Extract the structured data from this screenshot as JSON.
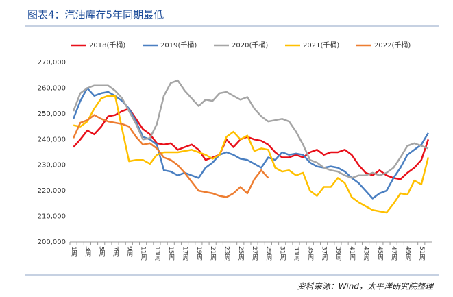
{
  "chart_data": {
    "type": "line",
    "title": "图表4：汽油库存5年同期最低",
    "source": "资料来源：Wind，太平洋研究院整理",
    "categories": [
      "1周",
      null,
      "3周",
      null,
      "5周",
      null,
      "7周",
      null,
      "9周",
      null,
      "11周",
      null,
      "13周",
      null,
      "15周",
      null,
      "17周",
      null,
      "19周",
      null,
      "21周",
      null,
      "23周",
      null,
      "25周",
      null,
      "27周",
      null,
      "29周",
      null,
      "31周",
      null,
      "33周",
      null,
      "35周",
      null,
      "37周",
      null,
      "39周",
      null,
      "41周",
      null,
      "43周",
      null,
      "45周",
      null,
      "47周",
      null,
      "49周",
      null,
      "51周",
      null
    ],
    "ylim": [
      200000,
      270000
    ],
    "yticks": [
      {
        "value": 200000,
        "label": "200,000"
      },
      {
        "value": 210000,
        "label": "210,000"
      },
      {
        "value": 220000,
        "label": "220,000"
      },
      {
        "value": 230000,
        "label": "230,000"
      },
      {
        "value": 240000,
        "label": "240,000"
      },
      {
        "value": 250000,
        "label": "250,000"
      },
      {
        "value": 260000,
        "label": "260,000"
      },
      {
        "value": 270000,
        "label": "270,000"
      }
    ],
    "grid": false,
    "legend": "top",
    "series": [
      {
        "name": "2018(千桶)",
        "color": "#e8101a",
        "values": [
          237000,
          240000,
          243500,
          242000,
          245000,
          249000,
          249500,
          251000,
          252000,
          248000,
          244000,
          242000,
          238500,
          238000,
          238500,
          236000,
          237000,
          238000,
          236000,
          232000,
          233000,
          234000,
          240000,
          237000,
          240000,
          241000,
          240000,
          239500,
          238000,
          235000,
          233000,
          233000,
          234000,
          233000,
          235000,
          236000,
          234000,
          235000,
          235000,
          236000,
          234000,
          230000,
          227000,
          226000,
          228000,
          226000,
          225000,
          224500,
          227000,
          229000,
          232000,
          240000
        ]
      },
      {
        "name": "2019(千桶)",
        "color": "#4a7fc1",
        "values": [
          248000,
          255000,
          260000,
          257000,
          258000,
          258500,
          257000,
          255000,
          252000,
          247000,
          241000,
          240000,
          238000,
          228000,
          227500,
          226000,
          227000,
          226000,
          225000,
          229000,
          231000,
          234000,
          235000,
          234000,
          232500,
          232000,
          230500,
          229000,
          233000,
          232000,
          235000,
          234000,
          234500,
          234000,
          231000,
          229500,
          229000,
          229500,
          229000,
          227500,
          225000,
          223000,
          220000,
          217000,
          219000,
          220000,
          225000,
          229000,
          234000,
          236000,
          238000,
          242500
        ]
      },
      {
        "name": "2020(千桶)",
        "color": "#a5a5a5",
        "values": [
          251000,
          258000,
          260000,
          261000,
          261000,
          261000,
          259000,
          256000,
          251000,
          246000,
          240000,
          240500,
          246000,
          257000,
          262000,
          263000,
          259000,
          256000,
          253000,
          255500,
          255000,
          258000,
          258500,
          257000,
          255500,
          256500,
          252000,
          249000,
          247000,
          247500,
          248000,
          247000,
          243000,
          238000,
          232000,
          231000,
          229000,
          228000,
          227500,
          226000,
          225000,
          226000,
          226000,
          227000,
          226000,
          227000,
          229000,
          233000,
          237500,
          238500,
          237500,
          236500
        ]
      },
      {
        "name": "2021(千桶)",
        "color": "#ffc000",
        "values": [
          245500,
          245000,
          247000,
          252000,
          256000,
          257000,
          257000,
          244000,
          231500,
          232000,
          232000,
          230500,
          234000,
          235000,
          235000,
          235000,
          235500,
          236000,
          235000,
          234000,
          232500,
          234000,
          241000,
          243000,
          240000,
          241500,
          235500,
          236500,
          236000,
          229000,
          227500,
          228000,
          226000,
          227000,
          220000,
          218000,
          221500,
          221500,
          225000,
          223000,
          217500,
          215500,
          214000,
          212500,
          212000,
          211500,
          215000,
          219000,
          218500,
          224000,
          222500,
          233000
        ]
      },
      {
        "name": "2022(千桶)",
        "color": "#ed7d31",
        "values": [
          240500,
          246500,
          247500,
          249500,
          248000,
          247000,
          246500,
          246000,
          245000,
          241000,
          238000,
          238500,
          236500,
          233000,
          232000,
          230000,
          227000,
          223500,
          220000,
          219500,
          219000,
          218000,
          217500,
          219000,
          221500,
          219000,
          224500,
          228000,
          225000,
          null,
          null,
          null,
          null,
          null,
          null,
          null,
          null,
          null,
          null,
          null,
          null,
          null,
          null,
          null,
          null,
          null,
          null,
          null,
          null,
          null,
          null,
          null
        ]
      }
    ]
  }
}
